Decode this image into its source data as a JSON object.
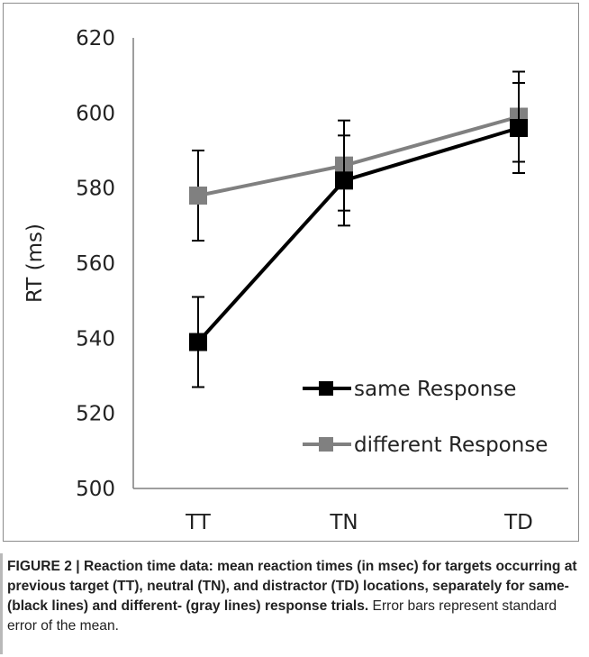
{
  "chart_data": {
    "type": "line",
    "categories": [
      "TT",
      "TN",
      "TD"
    ],
    "ylabel": "RT (ms)",
    "xlabel": "",
    "ylim": [
      500,
      620
    ],
    "yticks": [
      500,
      520,
      540,
      560,
      580,
      600,
      620
    ],
    "grid": false,
    "legend_position": "bottom-right",
    "series": [
      {
        "name": "same Response",
        "color": "#000000",
        "values": [
          539,
          582,
          596
        ],
        "error": [
          12,
          12,
          12
        ]
      },
      {
        "name": "different Response",
        "color": "#808080",
        "values": [
          578,
          586,
          599
        ],
        "error": [
          12,
          12,
          12
        ]
      }
    ]
  },
  "caption": {
    "label": "FIGURE 2 | Reaction time data: mean reaction times (in msec) for targets occurring at previous target (TT), neutral (TN), and distractor (TD) locations, separately for same- (black lines) and different- (gray lines) response trials.",
    "text": " Error bars represent standard error of the mean."
  }
}
